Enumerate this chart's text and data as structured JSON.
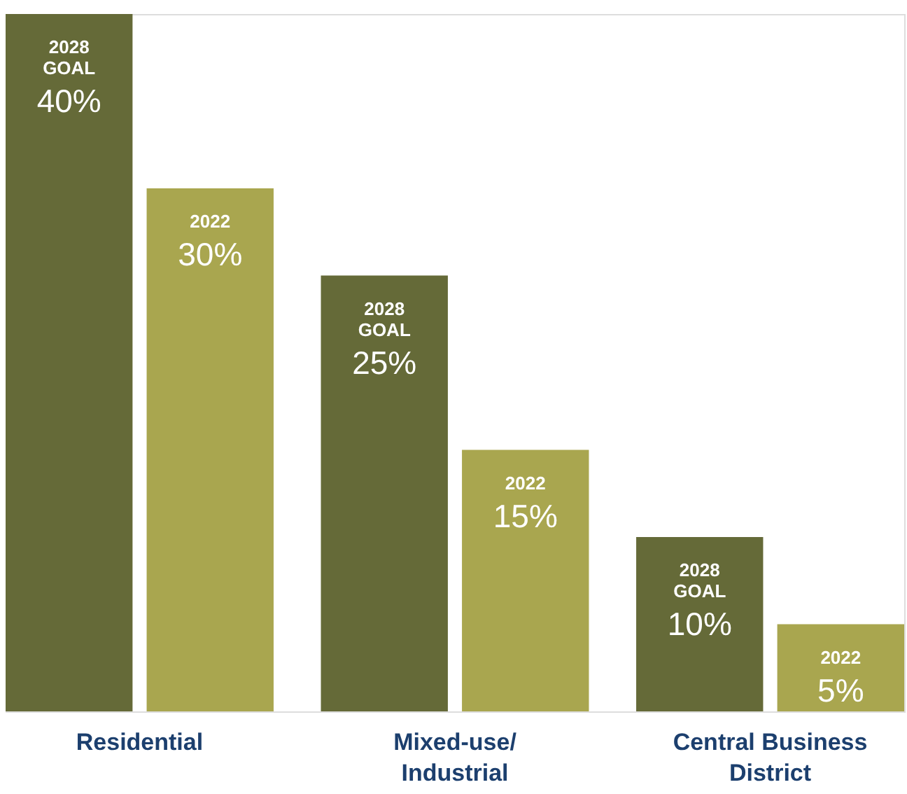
{
  "chart_data": {
    "type": "bar",
    "categories": [
      "Residential",
      "Mixed-use/\nIndustrial",
      "Central Business\nDistrict"
    ],
    "series": [
      {
        "name": "2028\nGOAL",
        "color": "#656a38",
        "values": [
          40,
          25,
          10
        ],
        "value_labels": [
          "40%",
          "25%",
          "10%"
        ]
      },
      {
        "name": "2022",
        "color": "#a9a64f",
        "values": [
          30,
          15,
          5
        ],
        "value_labels": [
          "30%",
          "15%",
          "5%"
        ]
      }
    ],
    "legend": false,
    "grid": false
  }
}
